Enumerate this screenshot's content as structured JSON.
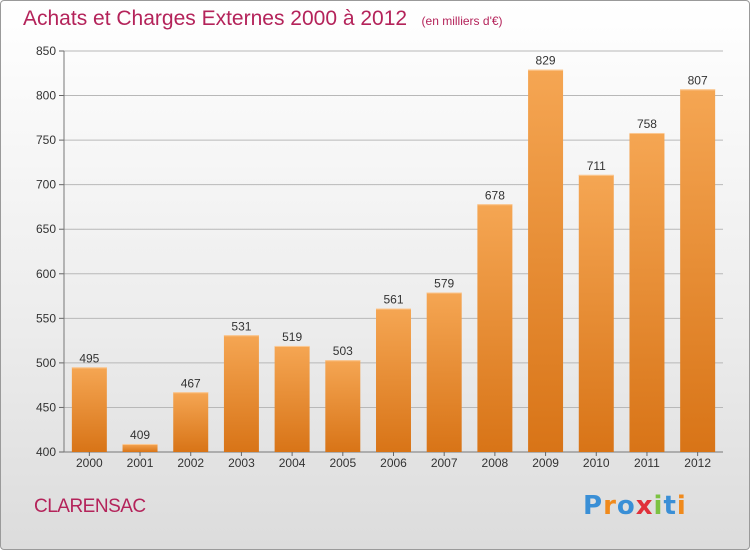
{
  "header": {
    "title": "Achats et Charges Externes 2000 à 2012",
    "subtitle": "(en milliers d'€)"
  },
  "commune": "CLARENSAC",
  "brand": {
    "name": "Proxiti",
    "letter_colors": [
      "#3a8fd6",
      "#f08a1c",
      "#3a8fd6",
      "#e0303a",
      "#7cc242",
      "#3a8fd6",
      "#f08a1c"
    ]
  },
  "colors": {
    "bar_top": "#f5a653",
    "bar_bottom": "#d87417",
    "title": "#b4235a",
    "grid": "#b8b8b8"
  },
  "chart_data": {
    "type": "bar",
    "categories": [
      "2000",
      "2001",
      "2002",
      "2003",
      "2004",
      "2005",
      "2006",
      "2007",
      "2008",
      "2009",
      "2010",
      "2011",
      "2012"
    ],
    "values": [
      495,
      409,
      467,
      531,
      519,
      503,
      561,
      579,
      678,
      829,
      711,
      758,
      807
    ],
    "ylim": [
      400,
      850
    ],
    "yticks": [
      400,
      450,
      500,
      550,
      600,
      650,
      700,
      750,
      800,
      850
    ],
    "grid": true,
    "data_labels": true
  }
}
